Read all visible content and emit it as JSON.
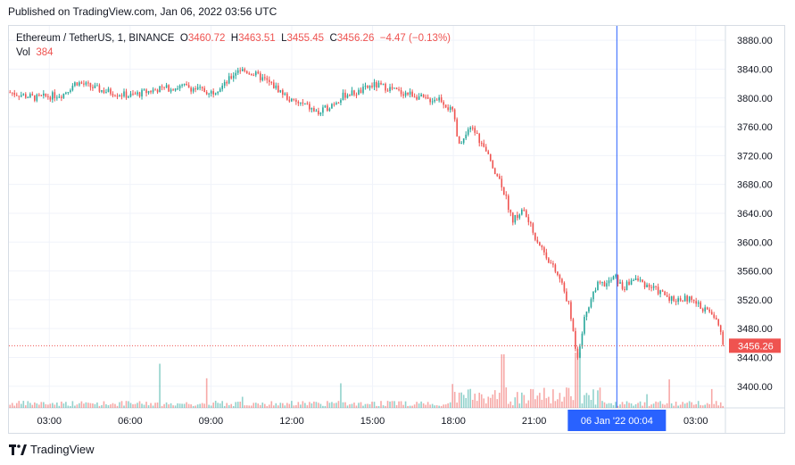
{
  "header": {
    "published": "Published on TradingView.com, Jan 06, 2022 03:56 UTC"
  },
  "legend": {
    "symbol": "Ethereum / TetherUS, 1, BINANCE",
    "o_key": "O",
    "o_val": "3460.72",
    "h_key": "H",
    "h_val": "3463.51",
    "l_key": "L",
    "l_val": "3455.45",
    "c_key": "C",
    "c_val": "3456.26",
    "change": "−4.47 (−0.13%)",
    "vol_key": "Vol",
    "vol_val": "384"
  },
  "footer": {
    "brand": "TradingView",
    "logo_icon": "tradingview-logo-icon"
  },
  "colors": {
    "up": "#26a69a",
    "down": "#ef5350",
    "crosshair": "#2962ff",
    "grid": "#f0f3fa",
    "text": "#131722"
  },
  "chart_data": {
    "type": "candlestick",
    "symbol": "Ethereum / TetherUS",
    "interval": "1",
    "exchange": "BINANCE",
    "ylim": [
      3370,
      3900
    ],
    "y_ticks": [
      3880,
      3840,
      3800,
      3760,
      3720,
      3680,
      3640,
      3600,
      3560,
      3520,
      3480,
      3440,
      3400
    ],
    "x_ticks": [
      {
        "label": "03:00",
        "hour": 3
      },
      {
        "label": "06:00",
        "hour": 6
      },
      {
        "label": "09:00",
        "hour": 9
      },
      {
        "label": "12:00",
        "hour": 12
      },
      {
        "label": "15:00",
        "hour": 15
      },
      {
        "label": "18:00",
        "hour": 18
      },
      {
        "label": "21:00",
        "hour": 21
      },
      {
        "label": "03:00",
        "hour": 27
      }
    ],
    "x_range_hours": [
      1.5,
      28.1
    ],
    "crosshair": {
      "label": "06 Jan '22   00:04",
      "hour": 24.07
    },
    "last_price": {
      "label": "3456.26",
      "value": 3456.26
    },
    "price_path": [
      [
        1.5,
        3808
      ],
      [
        2.5,
        3800
      ],
      [
        3.5,
        3805
      ],
      [
        4.0,
        3822
      ],
      [
        5.0,
        3810
      ],
      [
        6.0,
        3803
      ],
      [
        7.0,
        3812
      ],
      [
        8.0,
        3816
      ],
      [
        9.0,
        3808
      ],
      [
        9.5,
        3818
      ],
      [
        10.0,
        3840
      ],
      [
        10.5,
        3835
      ],
      [
        11.0,
        3825
      ],
      [
        11.5,
        3812
      ],
      [
        12.0,
        3795
      ],
      [
        12.5,
        3790
      ],
      [
        13.0,
        3778
      ],
      [
        13.5,
        3792
      ],
      [
        14.0,
        3805
      ],
      [
        14.5,
        3808
      ],
      [
        15.0,
        3818
      ],
      [
        15.5,
        3815
      ],
      [
        16.0,
        3808
      ],
      [
        16.5,
        3805
      ],
      [
        17.0,
        3797
      ],
      [
        17.5,
        3800
      ],
      [
        18.0,
        3778
      ],
      [
        18.2,
        3732
      ],
      [
        18.7,
        3760
      ],
      [
        19.3,
        3718
      ],
      [
        19.8,
        3680
      ],
      [
        20.2,
        3630
      ],
      [
        20.6,
        3645
      ],
      [
        21.0,
        3610
      ],
      [
        21.5,
        3578
      ],
      [
        22.0,
        3545
      ],
      [
        22.3,
        3510
      ],
      [
        22.6,
        3440
      ],
      [
        22.9,
        3500
      ],
      [
        23.3,
        3540
      ],
      [
        23.7,
        3542
      ],
      [
        24.0,
        3552
      ],
      [
        24.3,
        3535
      ],
      [
        24.7,
        3550
      ],
      [
        25.3,
        3538
      ],
      [
        25.7,
        3530
      ],
      [
        26.2,
        3520
      ],
      [
        26.7,
        3522
      ],
      [
        27.2,
        3510
      ],
      [
        27.6,
        3500
      ],
      [
        27.9,
        3480
      ],
      [
        28.05,
        3456
      ]
    ]
  }
}
